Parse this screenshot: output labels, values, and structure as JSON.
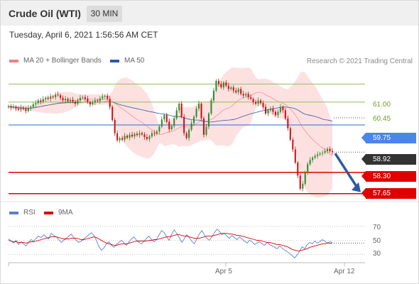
{
  "header": {
    "title": "Crude Oil (WTI)",
    "timeframe": "30 MIN"
  },
  "timestamp": "Tuesday, April 6, 2021 1:56:56 AM CET",
  "legend": {
    "bollinger": {
      "label": "MA 20 + Bollinger Bands",
      "color": "#f08080"
    },
    "ma50": {
      "label": "MA 50",
      "color": "#2c5aa0"
    }
  },
  "copyright": "Research © 2021 Trading Central",
  "rsi_legend": {
    "rsi": {
      "label": "RSI",
      "color": "#5b7fd6"
    },
    "ma9": {
      "label": "9MA",
      "color": "#e00000"
    }
  },
  "colors": {
    "up": "#2e8b2e",
    "down": "#cc1111",
    "resistance": "#8fbf5a",
    "pivot": "#4a86e8",
    "support": "#e00000",
    "arrow": "#2c5aa0"
  },
  "chart_data": [
    {
      "type": "candlestick",
      "title": "Crude Oil (WTI)",
      "timeframe": "30 MIN",
      "x_labels": [
        "Apr 5",
        "Apr 12"
      ],
      "ylim": [
        57.6,
        61.4
      ],
      "closes": [
        60.32,
        60.28,
        60.3,
        60.25,
        60.22,
        60.28,
        60.24,
        60.18,
        60.26,
        60.3,
        60.38,
        60.42,
        60.5,
        60.46,
        60.54,
        60.58,
        60.55,
        60.62,
        60.6,
        60.68,
        60.66,
        60.58,
        60.5,
        60.55,
        60.48,
        60.52,
        60.46,
        60.4,
        60.5,
        60.58,
        60.6,
        60.55,
        60.45,
        60.38,
        60.44,
        60.5,
        60.48,
        60.56,
        60.62,
        60.64,
        60.55,
        60.3,
        59.9,
        59.5,
        59.28,
        59.35,
        59.3,
        59.42,
        59.36,
        59.45,
        59.4,
        59.48,
        59.44,
        59.5,
        59.46,
        59.38,
        59.32,
        59.4,
        59.5,
        59.48,
        59.55,
        59.7,
        59.92,
        60.05,
        59.85,
        59.62,
        59.72,
        59.95,
        60.2,
        60.4,
        60.0,
        59.5,
        59.35,
        59.6,
        59.8,
        60.0,
        60.25,
        60.4,
        59.95,
        59.45,
        59.7,
        60.1,
        60.5,
        60.8,
        61.1,
        61.0,
        60.9,
        61.05,
        60.95,
        60.85,
        60.9,
        60.8,
        60.75,
        60.85,
        60.7,
        60.65,
        60.7,
        60.6,
        60.55,
        60.45,
        60.4,
        60.5,
        60.42,
        60.3,
        60.1,
        60.2,
        60.25,
        60.15,
        60.05,
        60.15,
        60.3,
        60.2,
        59.95,
        59.65,
        59.3,
        59.0,
        58.6,
        58.2,
        57.8,
        57.95,
        58.3,
        58.55,
        58.68,
        58.75,
        58.8,
        58.85,
        58.88,
        58.9,
        58.95,
        59.02,
        58.95,
        58.92
      ],
      "overlays": [
        "MA 20 + Bollinger Bands",
        "MA 50"
      ],
      "levels": [
        {
          "label": "61.00",
          "value": 61.0,
          "kind": "resistance"
        },
        {
          "label": "60.45",
          "value": 60.45,
          "kind": "resistance"
        },
        {
          "label": "59.75",
          "value": 59.75,
          "kind": "pivot"
        },
        {
          "label": "58.92",
          "value": 58.92,
          "kind": "last"
        },
        {
          "label": "58.30",
          "value": 58.3,
          "kind": "support"
        },
        {
          "label": "57.65",
          "value": 57.65,
          "kind": "support"
        }
      ],
      "annotation": {
        "type": "arrow",
        "direction": "down",
        "from_value": 58.92,
        "to_value": 57.65
      }
    },
    {
      "type": "line",
      "series": [
        {
          "name": "RSI",
          "values": [
            52,
            49,
            46,
            50,
            44,
            48,
            45,
            42,
            47,
            51,
            49,
            53,
            56,
            54,
            58,
            55,
            52,
            60,
            57,
            55,
            51,
            47,
            50,
            53,
            56,
            59,
            54,
            50,
            47,
            49,
            52,
            55,
            58,
            61,
            57,
            50,
            41,
            36,
            39,
            45,
            48,
            43,
            40,
            44,
            47,
            50,
            46,
            43,
            48,
            52,
            55,
            50,
            47,
            45,
            49,
            53,
            56,
            51,
            48,
            52,
            58,
            64,
            61,
            55,
            50,
            59,
            65,
            60,
            54,
            47,
            52,
            58,
            54,
            49,
            45,
            52,
            59,
            64,
            58,
            53,
            50,
            55,
            61,
            66,
            63,
            58,
            60,
            56,
            53,
            57,
            54,
            51,
            55,
            52,
            49,
            46,
            50,
            48,
            44,
            46,
            48,
            45,
            43,
            47,
            44,
            42,
            40,
            38,
            42,
            39,
            36,
            34,
            31,
            28,
            25,
            29,
            35,
            41,
            38,
            44,
            47,
            45,
            49,
            46,
            48,
            51,
            49,
            46,
            48,
            47
          ]
        },
        {
          "name": "9MA",
          "values": [
            50,
            49,
            48,
            48,
            47,
            47,
            47,
            46,
            47,
            48,
            48,
            49,
            50,
            51,
            52,
            53,
            54,
            55,
            55,
            55,
            54,
            53,
            52,
            52,
            52,
            53,
            53,
            53,
            52,
            51,
            51,
            52,
            53,
            54,
            55,
            54,
            52,
            50,
            48,
            46,
            45,
            44,
            43,
            43,
            44,
            45,
            45,
            45,
            46,
            47,
            48,
            49,
            49,
            49,
            49,
            49,
            50,
            50,
            51,
            51,
            52,
            53,
            54,
            55,
            55,
            56,
            57,
            58,
            58,
            57,
            56,
            56,
            55,
            54,
            53,
            53,
            53,
            54,
            55,
            56,
            56,
            56,
            57,
            58,
            59,
            60,
            60,
            60,
            59,
            59,
            58,
            57,
            57,
            56,
            55,
            54,
            53,
            52,
            51,
            50,
            50,
            49,
            48,
            47,
            47,
            46,
            45,
            44,
            44,
            43,
            42,
            41,
            39,
            37,
            36,
            35,
            35,
            36,
            37,
            38,
            40,
            41,
            42,
            43,
            44,
            45,
            45,
            46,
            46,
            46
          ]
        }
      ],
      "yticks": [
        70,
        50,
        30
      ],
      "ylim": [
        20,
        80
      ],
      "x_labels": [
        "Apr 5",
        "Apr 12"
      ]
    }
  ]
}
